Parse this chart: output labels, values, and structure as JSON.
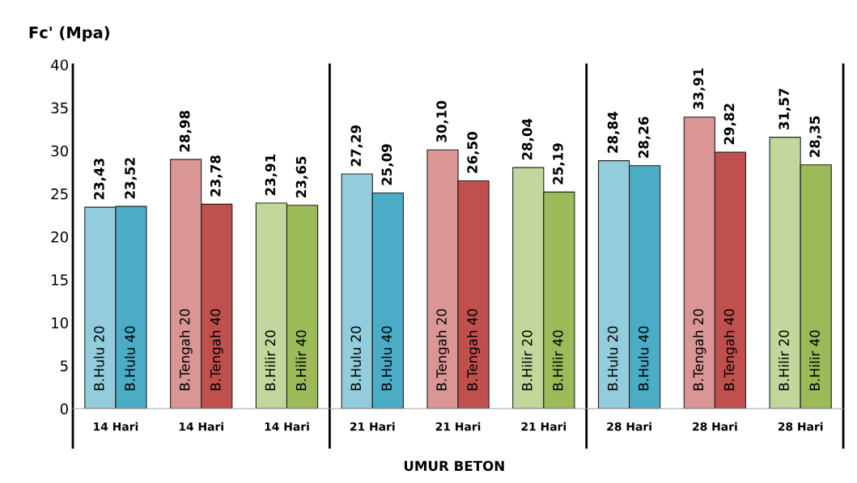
{
  "chart_data": {
    "type": "bar",
    "ylabel": "Fc' (Mpa)",
    "xlabel": "UMUR BETON",
    "categories": [
      "14 Hari",
      "14 Hari",
      "14 Hari",
      "21 Hari",
      "21 Hari",
      "21 Hari",
      "28 Hari",
      "28 Hari",
      "28 Hari"
    ],
    "series": [
      {
        "colors": [
          "#93cddd",
          "#d99694",
          "#c3d69b",
          "#93cddd",
          "#d99694",
          "#c3d69b",
          "#93cddd",
          "#d99694",
          "#c3d69b"
        ],
        "values": [
          23.43,
          28.98,
          23.91,
          27.29,
          30.1,
          28.04,
          28.84,
          33.91,
          31.57
        ],
        "value_labels": [
          "23,43",
          "28,98",
          "23,91",
          "27,29",
          "30,10",
          "28,04",
          "28,84",
          "33,91",
          "31,57"
        ]
      },
      {
        "colors": [
          "#4bacc6",
          "#c0504d",
          "#9bbb59",
          "#4bacc6",
          "#c0504d",
          "#9bbb59",
          "#4bacc6",
          "#c0504d",
          "#9bbb59"
        ],
        "values": [
          23.52,
          23.78,
          23.65,
          25.09,
          26.5,
          25.19,
          28.26,
          29.82,
          28.35
        ],
        "value_labels": [
          "23,52",
          "23,78",
          "23,65",
          "25,09",
          "26,50",
          "25,19",
          "28,26",
          "29,82",
          "28,35"
        ]
      }
    ],
    "annotations": [
      "B.Hulu 20",
      "B.Hulu 40",
      "B.Tengah 20",
      "B.Tengah 40",
      "B.Hilir 20",
      "B.Hilir 40",
      "B.Hulu 20",
      "B.Hulu 40",
      "B.Tengah 20",
      "B.Tengah 40",
      "B.Hilir 20",
      "B.Hilir 40",
      "B.Hulu 20",
      "B.Hulu 40",
      "B.Tengah 20",
      "B.Tengah 40",
      "B.Hilir 20",
      "B.Hilir 40"
    ],
    "ylim": [
      0,
      40
    ],
    "yticks": [
      0,
      5,
      10,
      15,
      20,
      25,
      30,
      35,
      40
    ],
    "grid": false,
    "legend": false
  }
}
